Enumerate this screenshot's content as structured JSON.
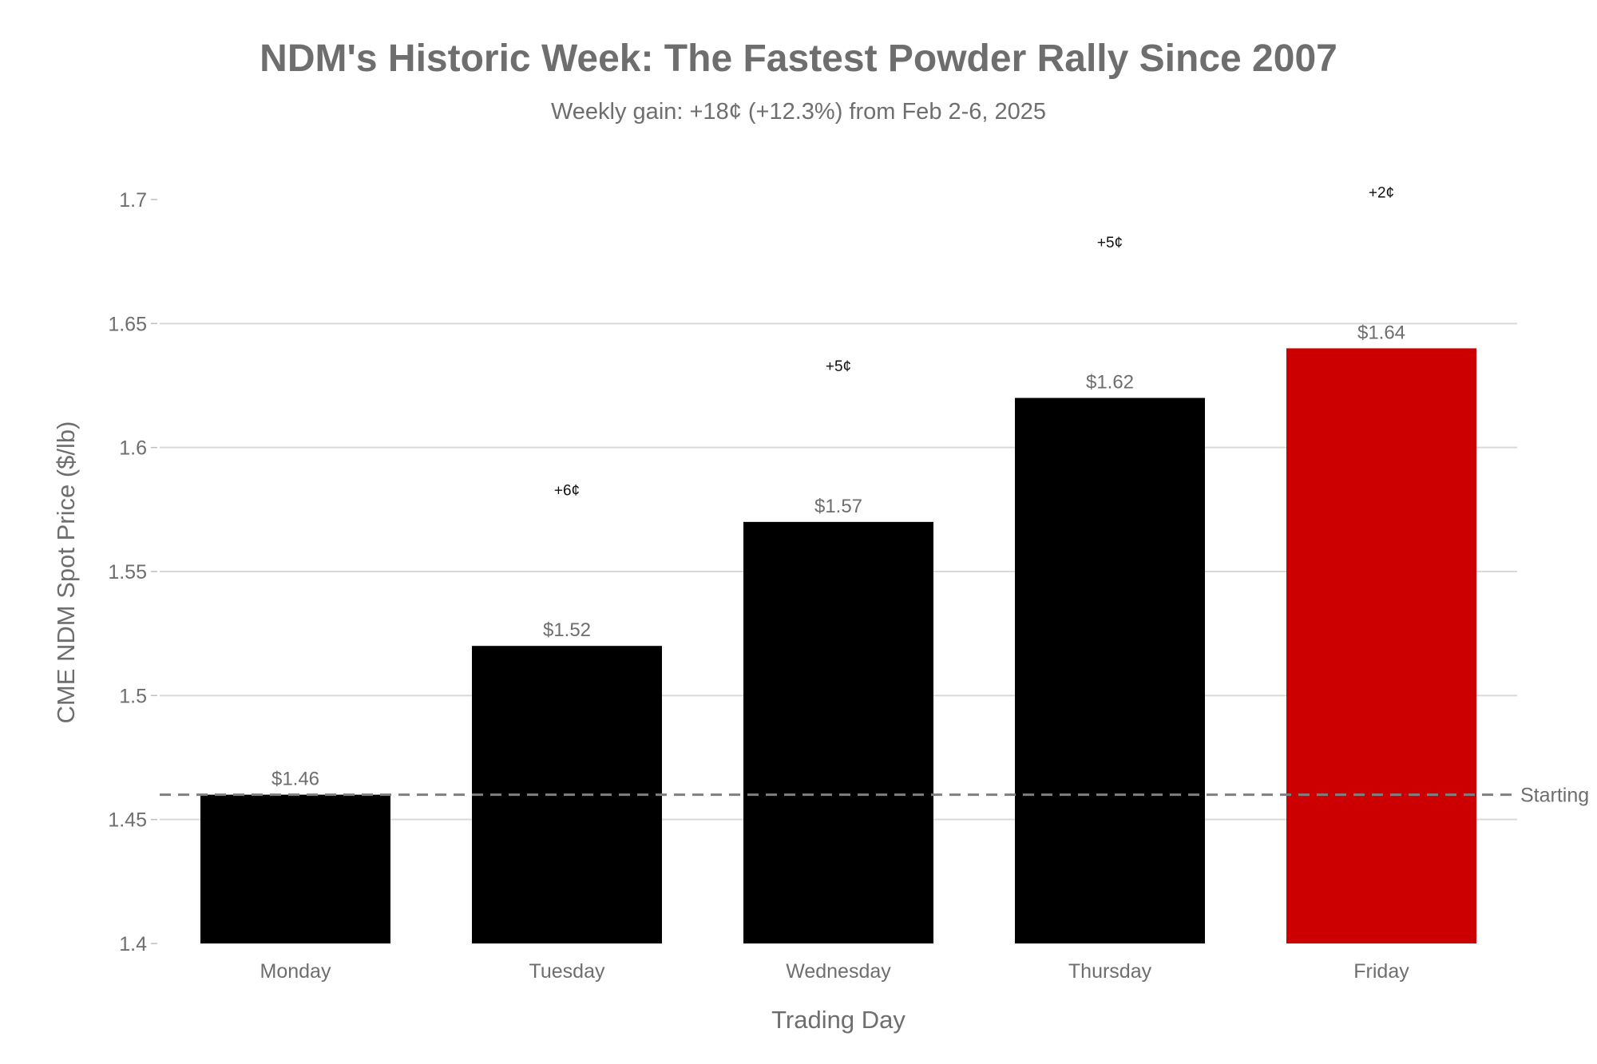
{
  "chart_data": {
    "type": "bar",
    "title": "NDM's Historic Week: The Fastest Powder Rally Since 2007",
    "subtitle": "Weekly gain: +18¢ (+12.3%) from Feb 2-6, 2025",
    "xlabel": "Trading Day",
    "ylabel": "CME NDM Spot Price ($/lb)",
    "ylim": [
      1.4,
      1.7
    ],
    "yticks": [
      {
        "value": 1.4,
        "label": "1.4"
      },
      {
        "value": 1.45,
        "label": "1.45"
      },
      {
        "value": 1.5,
        "label": "1.5"
      },
      {
        "value": 1.55,
        "label": "1.55"
      },
      {
        "value": 1.6,
        "label": "1.6"
      },
      {
        "value": 1.65,
        "label": "1.65"
      },
      {
        "value": 1.7,
        "label": "1.7"
      }
    ],
    "grid": true,
    "categories": [
      "Monday",
      "Tuesday",
      "Wednesday",
      "Thursday",
      "Friday"
    ],
    "values": [
      1.46,
      1.52,
      1.57,
      1.62,
      1.64
    ],
    "value_labels": [
      "$1.46",
      "$1.52",
      "$1.57",
      "$1.62",
      "$1.64"
    ],
    "bar_colors": [
      "#000000",
      "#000000",
      "#000000",
      "#000000",
      "#cc0000"
    ],
    "change_annotations": [
      {
        "category": "Tuesday",
        "label": "+6¢",
        "y": 1.583
      },
      {
        "category": "Wednesday",
        "label": "+5¢",
        "y": 1.633
      },
      {
        "category": "Thursday",
        "label": "+5¢",
        "y": 1.683
      },
      {
        "category": "Friday",
        "label": "+2¢",
        "y": 1.703
      }
    ],
    "reference_line": {
      "value": 1.46,
      "label": "Starting",
      "style": "dashed",
      "color": "#7f7f7f"
    }
  }
}
